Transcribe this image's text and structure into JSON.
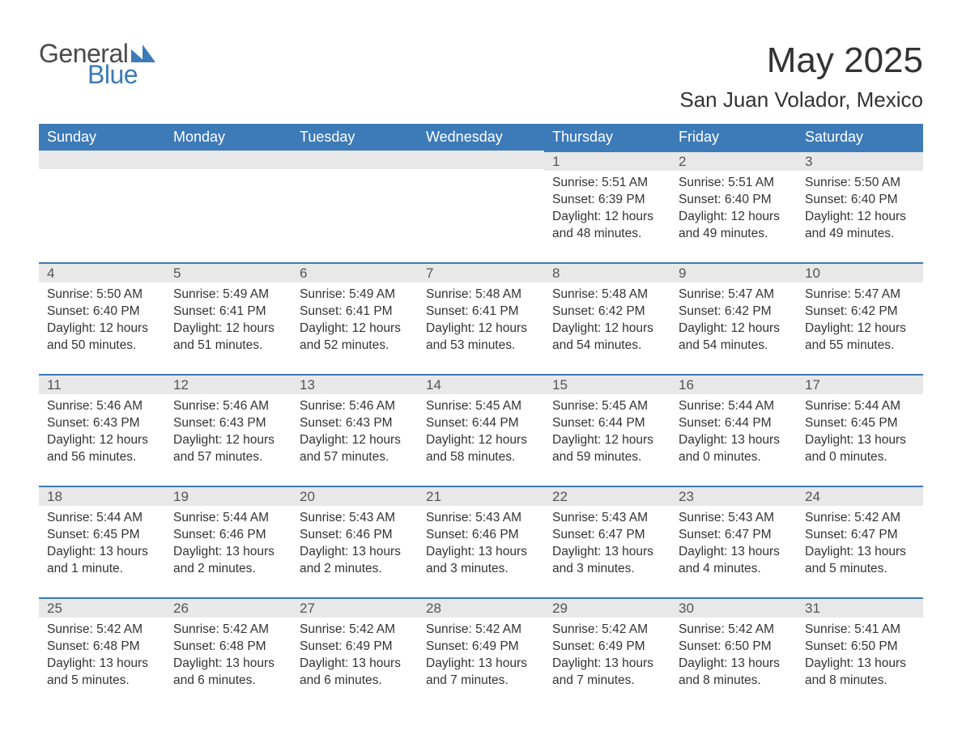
{
  "logo": {
    "text1": "General",
    "text2": "Blue"
  },
  "title": "May 2025",
  "location": "San Juan Volador, Mexico",
  "colors": {
    "header_bg": "#3d7ab8",
    "header_text": "#ffffff",
    "daynum_bg": "#e8e8e8",
    "daynum_border": "#3d7ab8",
    "body_text": "#333333",
    "logo_gray": "#4a4a4a",
    "logo_blue": "#3d7ab8",
    "background": "#ffffff"
  },
  "day_headers": [
    "Sunday",
    "Monday",
    "Tuesday",
    "Wednesday",
    "Thursday",
    "Friday",
    "Saturday"
  ],
  "weeks": [
    [
      null,
      null,
      null,
      null,
      {
        "n": "1",
        "sr": "Sunrise: 5:51 AM",
        "ss": "Sunset: 6:39 PM",
        "d1": "Daylight: 12 hours",
        "d2": "and 48 minutes."
      },
      {
        "n": "2",
        "sr": "Sunrise: 5:51 AM",
        "ss": "Sunset: 6:40 PM",
        "d1": "Daylight: 12 hours",
        "d2": "and 49 minutes."
      },
      {
        "n": "3",
        "sr": "Sunrise: 5:50 AM",
        "ss": "Sunset: 6:40 PM",
        "d1": "Daylight: 12 hours",
        "d2": "and 49 minutes."
      }
    ],
    [
      {
        "n": "4",
        "sr": "Sunrise: 5:50 AM",
        "ss": "Sunset: 6:40 PM",
        "d1": "Daylight: 12 hours",
        "d2": "and 50 minutes."
      },
      {
        "n": "5",
        "sr": "Sunrise: 5:49 AM",
        "ss": "Sunset: 6:41 PM",
        "d1": "Daylight: 12 hours",
        "d2": "and 51 minutes."
      },
      {
        "n": "6",
        "sr": "Sunrise: 5:49 AM",
        "ss": "Sunset: 6:41 PM",
        "d1": "Daylight: 12 hours",
        "d2": "and 52 minutes."
      },
      {
        "n": "7",
        "sr": "Sunrise: 5:48 AM",
        "ss": "Sunset: 6:41 PM",
        "d1": "Daylight: 12 hours",
        "d2": "and 53 minutes."
      },
      {
        "n": "8",
        "sr": "Sunrise: 5:48 AM",
        "ss": "Sunset: 6:42 PM",
        "d1": "Daylight: 12 hours",
        "d2": "and 54 minutes."
      },
      {
        "n": "9",
        "sr": "Sunrise: 5:47 AM",
        "ss": "Sunset: 6:42 PM",
        "d1": "Daylight: 12 hours",
        "d2": "and 54 minutes."
      },
      {
        "n": "10",
        "sr": "Sunrise: 5:47 AM",
        "ss": "Sunset: 6:42 PM",
        "d1": "Daylight: 12 hours",
        "d2": "and 55 minutes."
      }
    ],
    [
      {
        "n": "11",
        "sr": "Sunrise: 5:46 AM",
        "ss": "Sunset: 6:43 PM",
        "d1": "Daylight: 12 hours",
        "d2": "and 56 minutes."
      },
      {
        "n": "12",
        "sr": "Sunrise: 5:46 AM",
        "ss": "Sunset: 6:43 PM",
        "d1": "Daylight: 12 hours",
        "d2": "and 57 minutes."
      },
      {
        "n": "13",
        "sr": "Sunrise: 5:46 AM",
        "ss": "Sunset: 6:43 PM",
        "d1": "Daylight: 12 hours",
        "d2": "and 57 minutes."
      },
      {
        "n": "14",
        "sr": "Sunrise: 5:45 AM",
        "ss": "Sunset: 6:44 PM",
        "d1": "Daylight: 12 hours",
        "d2": "and 58 minutes."
      },
      {
        "n": "15",
        "sr": "Sunrise: 5:45 AM",
        "ss": "Sunset: 6:44 PM",
        "d1": "Daylight: 12 hours",
        "d2": "and 59 minutes."
      },
      {
        "n": "16",
        "sr": "Sunrise: 5:44 AM",
        "ss": "Sunset: 6:44 PM",
        "d1": "Daylight: 13 hours",
        "d2": "and 0 minutes."
      },
      {
        "n": "17",
        "sr": "Sunrise: 5:44 AM",
        "ss": "Sunset: 6:45 PM",
        "d1": "Daylight: 13 hours",
        "d2": "and 0 minutes."
      }
    ],
    [
      {
        "n": "18",
        "sr": "Sunrise: 5:44 AM",
        "ss": "Sunset: 6:45 PM",
        "d1": "Daylight: 13 hours",
        "d2": "and 1 minute."
      },
      {
        "n": "19",
        "sr": "Sunrise: 5:44 AM",
        "ss": "Sunset: 6:46 PM",
        "d1": "Daylight: 13 hours",
        "d2": "and 2 minutes."
      },
      {
        "n": "20",
        "sr": "Sunrise: 5:43 AM",
        "ss": "Sunset: 6:46 PM",
        "d1": "Daylight: 13 hours",
        "d2": "and 2 minutes."
      },
      {
        "n": "21",
        "sr": "Sunrise: 5:43 AM",
        "ss": "Sunset: 6:46 PM",
        "d1": "Daylight: 13 hours",
        "d2": "and 3 minutes."
      },
      {
        "n": "22",
        "sr": "Sunrise: 5:43 AM",
        "ss": "Sunset: 6:47 PM",
        "d1": "Daylight: 13 hours",
        "d2": "and 3 minutes."
      },
      {
        "n": "23",
        "sr": "Sunrise: 5:43 AM",
        "ss": "Sunset: 6:47 PM",
        "d1": "Daylight: 13 hours",
        "d2": "and 4 minutes."
      },
      {
        "n": "24",
        "sr": "Sunrise: 5:42 AM",
        "ss": "Sunset: 6:47 PM",
        "d1": "Daylight: 13 hours",
        "d2": "and 5 minutes."
      }
    ],
    [
      {
        "n": "25",
        "sr": "Sunrise: 5:42 AM",
        "ss": "Sunset: 6:48 PM",
        "d1": "Daylight: 13 hours",
        "d2": "and 5 minutes."
      },
      {
        "n": "26",
        "sr": "Sunrise: 5:42 AM",
        "ss": "Sunset: 6:48 PM",
        "d1": "Daylight: 13 hours",
        "d2": "and 6 minutes."
      },
      {
        "n": "27",
        "sr": "Sunrise: 5:42 AM",
        "ss": "Sunset: 6:49 PM",
        "d1": "Daylight: 13 hours",
        "d2": "and 6 minutes."
      },
      {
        "n": "28",
        "sr": "Sunrise: 5:42 AM",
        "ss": "Sunset: 6:49 PM",
        "d1": "Daylight: 13 hours",
        "d2": "and 7 minutes."
      },
      {
        "n": "29",
        "sr": "Sunrise: 5:42 AM",
        "ss": "Sunset: 6:49 PM",
        "d1": "Daylight: 13 hours",
        "d2": "and 7 minutes."
      },
      {
        "n": "30",
        "sr": "Sunrise: 5:42 AM",
        "ss": "Sunset: 6:50 PM",
        "d1": "Daylight: 13 hours",
        "d2": "and 8 minutes."
      },
      {
        "n": "31",
        "sr": "Sunrise: 5:41 AM",
        "ss": "Sunset: 6:50 PM",
        "d1": "Daylight: 13 hours",
        "d2": "and 8 minutes."
      }
    ]
  ]
}
